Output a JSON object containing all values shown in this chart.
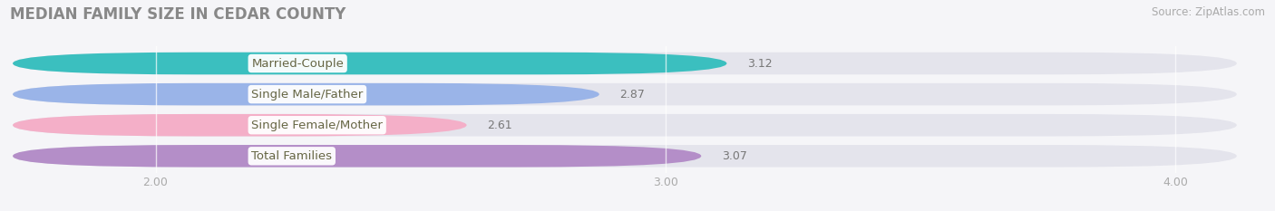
{
  "title": "MEDIAN FAMILY SIZE IN CEDAR COUNTY",
  "source": "Source: ZipAtlas.com",
  "categories": [
    "Married-Couple",
    "Single Male/Father",
    "Single Female/Mother",
    "Total Families"
  ],
  "values": [
    3.12,
    2.87,
    2.61,
    3.07
  ],
  "bar_colors": [
    "#3bbfbf",
    "#9ab4e8",
    "#f4afc8",
    "#b48ec8"
  ],
  "xmin": 1.72,
  "xmax": 4.12,
  "xticks": [
    2.0,
    3.0,
    4.0
  ],
  "xtick_labels": [
    "2.00",
    "3.00",
    "4.00"
  ],
  "bar_height": 0.72,
  "background_color": "#f5f5f8",
  "bar_bg_color": "#e4e4ec",
  "title_fontsize": 12,
  "label_fontsize": 9.5,
  "value_fontsize": 9,
  "tick_fontsize": 9,
  "title_color": "#888888",
  "tick_color": "#aaaaaa",
  "value_color": "#777777",
  "label_text_color": "#666644"
}
